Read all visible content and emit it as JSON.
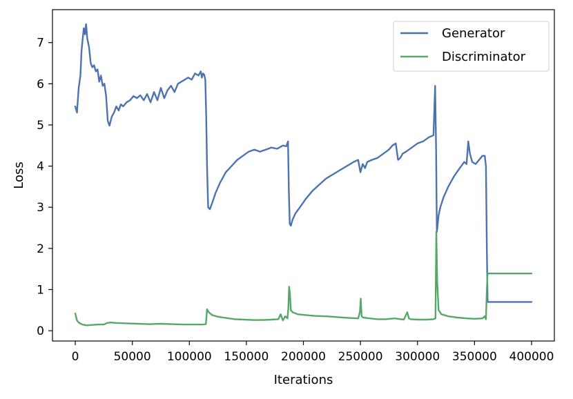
{
  "chart_data": {
    "type": "line",
    "xlabel": "Iterations",
    "ylabel": "Loss",
    "xlim": [
      -20000,
      420000
    ],
    "ylim": [
      -0.25,
      7.8
    ],
    "xticks": [
      0,
      50000,
      100000,
      150000,
      200000,
      250000,
      300000,
      350000,
      400000
    ],
    "yticks": [
      0,
      1,
      2,
      3,
      4,
      5,
      6,
      7
    ],
    "grid": false,
    "legend_position": "top-right",
    "series": [
      {
        "name": "Generator",
        "color": "#4c72b0",
        "x": [
          0,
          1500,
          3000,
          4500,
          5500,
          6500,
          7500,
          8500,
          9500,
          10500,
          12000,
          13500,
          15000,
          16500,
          18000,
          19500,
          21000,
          22500,
          24000,
          25500,
          27000,
          28500,
          30000,
          32000,
          34000,
          36000,
          38000,
          40000,
          42000,
          45000,
          48000,
          51000,
          54000,
          57000,
          60000,
          63000,
          66000,
          69000,
          72000,
          75000,
          78000,
          81000,
          84000,
          87000,
          90000,
          93000,
          96000,
          99000,
          102000,
          105000,
          108000,
          110000,
          111000,
          112000,
          113000,
          114000,
          114800,
          115500,
          116500,
          118000,
          120000,
          123000,
          127000,
          132000,
          137000,
          142000,
          147000,
          152000,
          157000,
          162000,
          167000,
          172000,
          177000,
          182000,
          185000,
          186500,
          187200,
          188000,
          189000,
          190500,
          193000,
          197000,
          202000,
          208000,
          214000,
          220000,
          226000,
          232000,
          238000,
          244000,
          248000,
          250000,
          252000,
          254000,
          256000,
          260000,
          265000,
          270000,
          275000,
          278000,
          281000,
          283000,
          285000,
          287000,
          290000,
          295000,
          300000,
          305000,
          310000,
          314000,
          315500,
          316300,
          317000,
          317800,
          318500,
          320000,
          323000,
          327000,
          332000,
          337000,
          341000,
          343000,
          344500,
          346000,
          348000,
          351000,
          354000,
          357000,
          359000,
          360000,
          360800,
          361500,
          370000,
          380000,
          390000,
          400000
        ],
        "y": [
          5.45,
          5.3,
          5.9,
          6.2,
          6.8,
          7.1,
          7.35,
          7.2,
          7.45,
          7.1,
          6.9,
          6.5,
          6.4,
          6.45,
          6.3,
          6.35,
          6.05,
          6.2,
          5.95,
          6.0,
          5.7,
          5.1,
          4.98,
          5.2,
          5.3,
          5.45,
          5.35,
          5.5,
          5.45,
          5.55,
          5.6,
          5.7,
          5.65,
          5.72,
          5.6,
          5.75,
          5.55,
          5.8,
          5.6,
          5.9,
          5.65,
          5.85,
          5.95,
          5.8,
          6.0,
          6.05,
          6.1,
          6.15,
          6.1,
          6.25,
          6.2,
          6.3,
          6.15,
          6.25,
          6.22,
          6.1,
          5.2,
          4.0,
          3.0,
          2.95,
          3.1,
          3.35,
          3.6,
          3.85,
          4.0,
          4.15,
          4.25,
          4.35,
          4.4,
          4.35,
          4.4,
          4.45,
          4.42,
          4.5,
          4.48,
          4.6,
          3.4,
          2.6,
          2.55,
          2.7,
          2.85,
          3.0,
          3.2,
          3.4,
          3.55,
          3.7,
          3.8,
          3.9,
          4.0,
          4.1,
          4.15,
          3.85,
          4.05,
          3.95,
          4.1,
          4.15,
          4.2,
          4.3,
          4.4,
          4.5,
          4.55,
          4.15,
          4.2,
          4.3,
          4.35,
          4.45,
          4.55,
          4.6,
          4.7,
          4.75,
          5.95,
          4.4,
          2.4,
          2.6,
          2.8,
          3.0,
          3.25,
          3.5,
          3.75,
          3.95,
          4.1,
          4.05,
          4.6,
          4.3,
          4.1,
          4.05,
          4.15,
          4.25,
          4.25,
          4.0,
          2.0,
          0.7,
          0.7,
          0.7,
          0.7,
          0.7
        ]
      },
      {
        "name": "Discriminator",
        "color": "#55a868",
        "x": [
          0,
          1500,
          3000,
          6000,
          10000,
          15000,
          20000,
          25000,
          28000,
          31000,
          35000,
          45000,
          55000,
          65000,
          75000,
          85000,
          95000,
          105000,
          112000,
          114500,
          115500,
          117000,
          120000,
          125000,
          132000,
          140000,
          148000,
          156000,
          164000,
          172000,
          178000,
          180000,
          182000,
          184000,
          186000,
          186800,
          187500,
          188200,
          189000,
          190500,
          195000,
          202000,
          210000,
          220000,
          230000,
          240000,
          248000,
          249500,
          250300,
          251000,
          252500,
          258000,
          265000,
          272000,
          280000,
          288000,
          291000,
          292500,
          294000,
          300000,
          308000,
          314000,
          315800,
          316500,
          317300,
          318500,
          321000,
          327000,
          335000,
          343000,
          350000,
          357000,
          359000,
          360000,
          360800,
          361500,
          370000,
          380000,
          390000,
          400000
        ],
        "y": [
          0.42,
          0.25,
          0.2,
          0.15,
          0.13,
          0.14,
          0.15,
          0.15,
          0.19,
          0.2,
          0.19,
          0.18,
          0.17,
          0.16,
          0.17,
          0.16,
          0.15,
          0.15,
          0.15,
          0.16,
          0.52,
          0.45,
          0.38,
          0.34,
          0.31,
          0.28,
          0.27,
          0.26,
          0.26,
          0.27,
          0.28,
          0.4,
          0.25,
          0.35,
          0.3,
          0.55,
          1.07,
          0.9,
          0.5,
          0.45,
          0.4,
          0.38,
          0.36,
          0.35,
          0.33,
          0.31,
          0.3,
          0.45,
          0.78,
          0.35,
          0.32,
          0.3,
          0.28,
          0.28,
          0.3,
          0.27,
          0.45,
          0.3,
          0.28,
          0.27,
          0.27,
          0.28,
          0.3,
          2.4,
          1.2,
          0.5,
          0.4,
          0.35,
          0.32,
          0.3,
          0.29,
          0.3,
          0.35,
          0.28,
          1.0,
          1.39,
          1.39,
          1.39,
          1.39,
          1.39
        ]
      }
    ]
  }
}
